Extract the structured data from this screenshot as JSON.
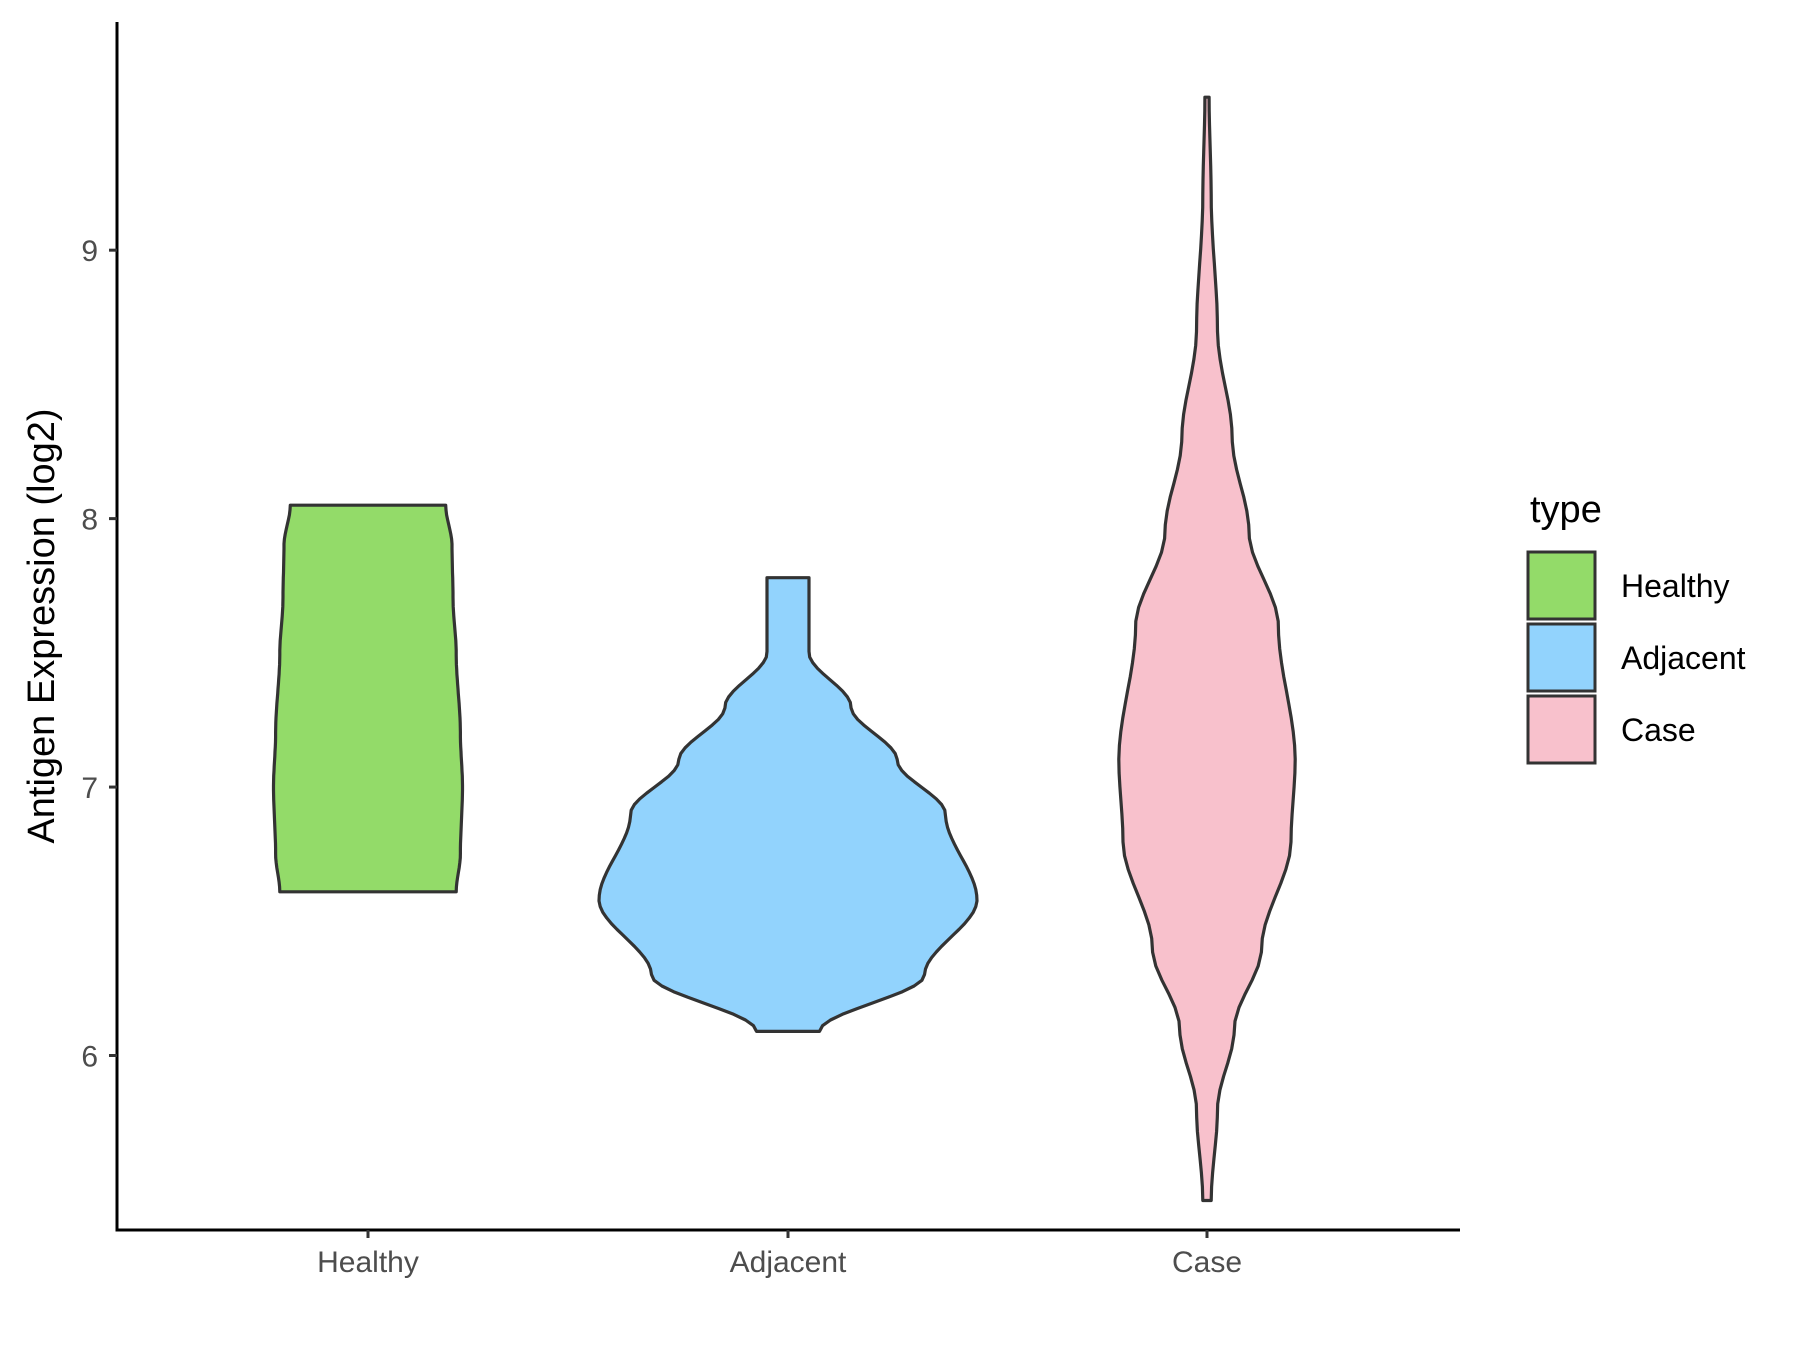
{
  "chart_data": {
    "type": "violin",
    "title": "",
    "xlabel": "",
    "ylabel": "Antigen Expression (log2)",
    "categories": [
      "Healthy",
      "Adjacent",
      "Case"
    ],
    "ylim": [
      5.35,
      9.85
    ],
    "yticks": [
      6,
      7,
      8,
      9
    ],
    "grid": false,
    "legend": {
      "title": "type",
      "position": "right",
      "entries": [
        "Healthy",
        "Adjacent",
        "Case"
      ]
    },
    "series": [
      {
        "category": "Healthy",
        "color": "#93DB69",
        "min": 6.61,
        "max": 8.05,
        "density_profile": [
          [
            6.61,
            0.42
          ],
          [
            6.75,
            0.44
          ],
          [
            7.0,
            0.45
          ],
          [
            7.2,
            0.44
          ],
          [
            7.5,
            0.42
          ],
          [
            7.7,
            0.405
          ],
          [
            7.9,
            0.4
          ],
          [
            8.05,
            0.37
          ]
        ]
      },
      {
        "category": "Adjacent",
        "color": "#92D3FD",
        "min": 6.09,
        "max": 7.78,
        "density_profile": [
          [
            6.09,
            0.15
          ],
          [
            6.3,
            0.65
          ],
          [
            6.58,
            0.9
          ],
          [
            6.9,
            0.75
          ],
          [
            7.1,
            0.52
          ],
          [
            7.3,
            0.3
          ],
          [
            7.5,
            0.1
          ],
          [
            7.65,
            0.1
          ],
          [
            7.78,
            0.1
          ]
        ]
      },
      {
        "category": "Case",
        "color": "#F8C1CC",
        "min": 5.46,
        "max": 9.57,
        "density_profile": [
          [
            5.46,
            0.02
          ],
          [
            5.8,
            0.05
          ],
          [
            6.1,
            0.13
          ],
          [
            6.4,
            0.26
          ],
          [
            6.8,
            0.4
          ],
          [
            7.1,
            0.42
          ],
          [
            7.6,
            0.34
          ],
          [
            7.95,
            0.2
          ],
          [
            8.3,
            0.12
          ],
          [
            8.7,
            0.05
          ],
          [
            9.2,
            0.02
          ],
          [
            9.57,
            0.01
          ]
        ]
      }
    ]
  }
}
